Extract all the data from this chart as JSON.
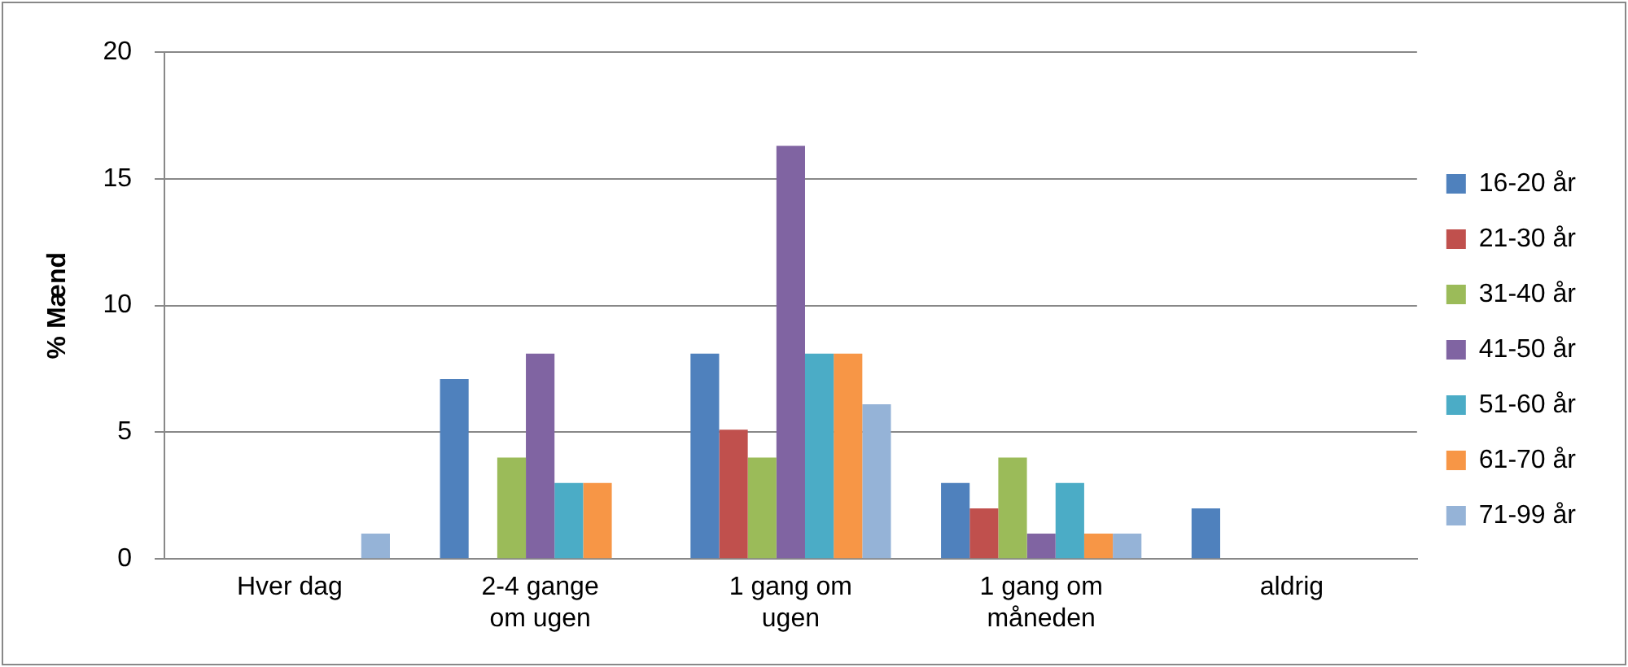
{
  "chart_data": {
    "type": "bar",
    "ylabel": "% Mænd",
    "categories": [
      "Hver dag",
      "2-4 gange om ugen",
      "1 gang om ugen",
      "1 gang om måneden",
      "aldrig"
    ],
    "series": [
      {
        "name": "16-20 år",
        "color": "#4f81bd",
        "values": [
          0,
          7.1,
          8.1,
          3,
          2
        ]
      },
      {
        "name": "21-30 år",
        "color": "#c0504d",
        "values": [
          0,
          0,
          5.1,
          2,
          0
        ]
      },
      {
        "name": "31-40 år",
        "color": "#9bbb59",
        "values": [
          0,
          4,
          4,
          4,
          0
        ]
      },
      {
        "name": "41-50 år",
        "color": "#8064a2",
        "values": [
          0,
          8.1,
          16.3,
          1,
          0
        ]
      },
      {
        "name": "51-60 år",
        "color": "#4bacc6",
        "values": [
          0,
          3,
          8.1,
          3,
          0
        ]
      },
      {
        "name": "61-70 år",
        "color": "#f79646",
        "values": [
          0,
          3,
          8.1,
          1,
          0
        ]
      },
      {
        "name": "71-99 år",
        "color": "#95b3d7",
        "values": [
          1,
          0,
          6.1,
          1,
          0
        ]
      }
    ],
    "ylim": [
      0,
      20
    ],
    "yticks": [
      0,
      5,
      10,
      15,
      20
    ],
    "grid": "y",
    "legend": "right"
  }
}
